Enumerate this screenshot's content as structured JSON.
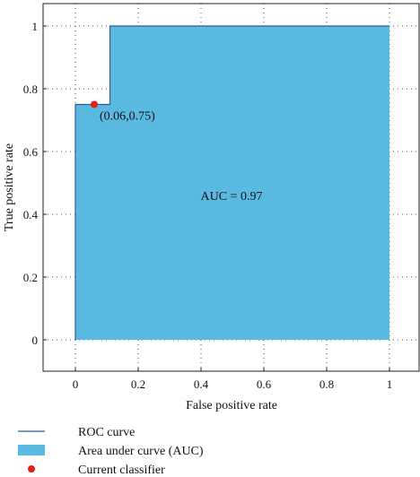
{
  "chart_data": {
    "type": "area",
    "xlabel": "False positive rate",
    "ylabel": "True positive rate",
    "xlim": [
      -0.1,
      1.1
    ],
    "ylim": [
      -0.1,
      1.08
    ],
    "x_ticks": [
      "0",
      "0.2",
      "0.4",
      "0.6",
      "0.8",
      "1"
    ],
    "y_ticks": [
      "0",
      "0.2",
      "0.4",
      "0.6",
      "0.8",
      "1"
    ],
    "grid": "dotted",
    "roc_curve": {
      "x": [
        0,
        0,
        0.11,
        0.11,
        1
      ],
      "y": [
        0,
        0.75,
        0.75,
        1,
        1
      ]
    },
    "current_classifier": {
      "x": 0.06,
      "y": 0.75,
      "label": "(0.06,0.75)"
    },
    "annotation": "AUC = 0.97",
    "legend": {
      "placement": "below",
      "items": [
        {
          "label": "ROC curve",
          "kind": "line"
        },
        {
          "label": "Area under curve (AUC)",
          "kind": "patch"
        },
        {
          "label": "Current classifier",
          "kind": "marker"
        }
      ]
    },
    "colors": {
      "line": "#2e5d8f",
      "fill": "#5ab9e0",
      "marker": "#dd2211",
      "grid": "#555555"
    }
  }
}
